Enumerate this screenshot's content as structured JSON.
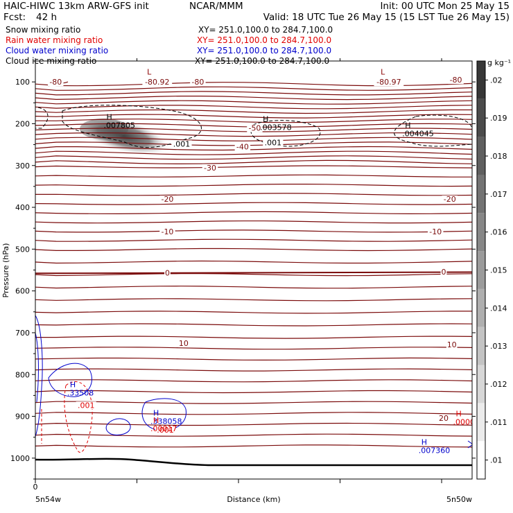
{
  "header": {
    "left_line1": "HAIC-HIWC 13km ARW-GFS init",
    "center_line1": "NCAR/MMM",
    "right_line1": "Init: 00 UTC Mon 25 May 15",
    "fcst_label": "Fcst:",
    "fcst_value": "42 h",
    "valid": "Valid: 18 UTC Tue 26 May 15 (15 LST Tue 26 May 15)"
  },
  "fields": [
    {
      "name": "Snow mixing ratio",
      "xy": "XY= 251.0,100.0 to 284.7,100.0",
      "color": "#000000"
    },
    {
      "name": "Rain water mixing ratio",
      "xy": "XY= 251.0,100.0 to 284.7,100.0",
      "color": "#e00000"
    },
    {
      "name": "Cloud water mixing ratio",
      "xy": "XY= 251.0,100.0 to 284.7,100.0",
      "color": "#0000cc"
    },
    {
      "name": "Cloud ice mixing ratio",
      "xy": "XY= 251.0,100.0 to 284.7,100.0",
      "color": "#000000"
    }
  ],
  "chart_data": {
    "type": "heatmap",
    "xlabel": "Distance (km)",
    "ylabel": "Pressure (hPa)",
    "ylim": [
      1050,
      50
    ],
    "xlim": [
      0,
      215
    ],
    "x_ticks": [
      "0"
    ],
    "x_endpoints": [
      "5n54w",
      "5n50w"
    ],
    "y_ticks": [
      100,
      200,
      300,
      400,
      500,
      600,
      700,
      800,
      900,
      1000
    ],
    "colorbar": {
      "unit": "g kg⁻¹",
      "ticks": [
        ".01",
        ".011",
        ".012",
        ".013",
        ".014",
        ".015",
        ".016",
        ".017",
        ".018",
        ".019",
        ".02"
      ]
    },
    "temperature_contour_labels": [
      {
        "value": "-80",
        "x": 10,
        "p": 100
      },
      {
        "value": "-80.92",
        "x": 60,
        "p": 100
      },
      {
        "value": "-80",
        "x": 80,
        "p": 100
      },
      {
        "value": "-80.97",
        "x": 174,
        "p": 100
      },
      {
        "value": "-80",
        "x": 207,
        "p": 95
      },
      {
        "value": "-50",
        "x": 108,
        "p": 210
      },
      {
        "value": "-40",
        "x": 102,
        "p": 255
      },
      {
        "value": "-30",
        "x": 86,
        "p": 305
      },
      {
        "value": "-20",
        "x": 65,
        "p": 380
      },
      {
        "value": "-20",
        "x": 204,
        "p": 380
      },
      {
        "value": "-10",
        "x": 65,
        "p": 458
      },
      {
        "value": "-10",
        "x": 197,
        "p": 458
      },
      {
        "value": "0",
        "x": 65,
        "p": 557
      },
      {
        "value": "0",
        "x": 201,
        "p": 554
      },
      {
        "value": "10",
        "x": 73,
        "p": 725
      },
      {
        "value": "10",
        "x": 205,
        "p": 728
      },
      {
        "value": "20",
        "x": 201,
        "p": 904
      }
    ],
    "extrema": [
      {
        "type": "L",
        "x": 55,
        "p": 82,
        "color": "#8b0000"
      },
      {
        "type": "L",
        "x": 170,
        "p": 82,
        "color": "#8b0000"
      },
      {
        "type": "H",
        "label": ".007805",
        "x": 35,
        "p": 190,
        "color": "#000000"
      },
      {
        "type": "H",
        "label": ".003578",
        "x": 112,
        "p": 195,
        "color": "#000000"
      },
      {
        "type": "H",
        "label": ".004045",
        "x": 182,
        "p": 210,
        "color": "#000000"
      },
      {
        "type": "H",
        "label": ".33508",
        "x": 17,
        "p": 830,
        "color": "#0000cc"
      },
      {
        "type": "H",
        "label": ".338058",
        "x": 58,
        "p": 898,
        "color": "#0000cc"
      },
      {
        "type": "H",
        "label": ".00017",
        "x": 58,
        "p": 916,
        "color": "#e00000"
      },
      {
        "type": "H",
        "label": ".0000",
        "x": 207,
        "p": 900,
        "color": "#e00000"
      },
      {
        "type": "H",
        "label": ".007360",
        "x": 190,
        "p": 968,
        "color": "#0000cc"
      }
    ],
    "contour_value_labels": [
      {
        "value": ".001",
        "x": 72,
        "p": 248,
        "color": "#000000"
      },
      {
        "value": ".001",
        "x": 117,
        "p": 245,
        "color": "#000000"
      },
      {
        "value": ".001",
        "x": 25,
        "p": 873,
        "color": "#e00000"
      },
      {
        "value": ".001",
        "x": 64,
        "p": 932,
        "color": "#e00000"
      }
    ]
  }
}
